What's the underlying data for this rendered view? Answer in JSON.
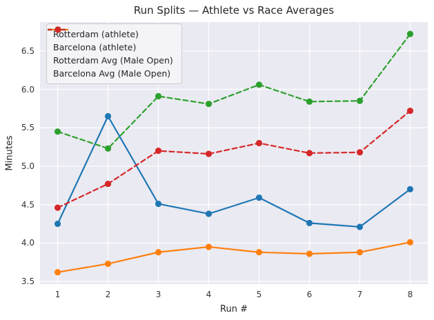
{
  "colors": {
    "figure_background": "#ffffff",
    "axes_background": "#eaeaf2",
    "grid": "#ffffff",
    "title_text": "#262626",
    "tick_text": "#333333",
    "legend_background": "#f3f3f8",
    "legend_border": "#cccccc"
  },
  "chart_data": {
    "type": "line",
    "title": "Run Splits — Athlete vs Race Averages",
    "xlabel": "Run #",
    "ylabel": "Minutes",
    "x": [
      1,
      2,
      3,
      4,
      5,
      6,
      7,
      8
    ],
    "xticks": [
      1,
      2,
      3,
      4,
      5,
      6,
      7,
      8
    ],
    "yticks": [
      3.5,
      4.0,
      4.5,
      5.0,
      5.5,
      6.0,
      6.5
    ],
    "xlim": [
      0.65,
      8.35
    ],
    "ylim": [
      3.465,
      6.875
    ],
    "grid": true,
    "legend_position": "upper-left",
    "series": [
      {
        "name": "Rotterdam (athlete)",
        "color": "#1f77b4",
        "style": "solid",
        "values": [
          4.25,
          5.65,
          4.51,
          4.38,
          4.59,
          4.26,
          4.21,
          4.7
        ]
      },
      {
        "name": "Barcelona (athlete)",
        "color": "#ff7f0e",
        "style": "solid",
        "values": [
          3.62,
          3.73,
          3.88,
          3.95,
          3.88,
          3.86,
          3.88,
          4.01
        ]
      },
      {
        "name": "Rotterdam Avg (Male Open)",
        "color": "#2ca02c",
        "style": "dashed",
        "values": [
          5.45,
          5.23,
          5.91,
          5.81,
          6.06,
          5.84,
          5.85,
          6.72
        ]
      },
      {
        "name": "Barcelona Avg (Male Open)",
        "color": "#d62728",
        "style": "dashed",
        "values": [
          4.46,
          4.77,
          5.2,
          5.16,
          5.3,
          5.17,
          5.18,
          5.72
        ]
      }
    ]
  }
}
